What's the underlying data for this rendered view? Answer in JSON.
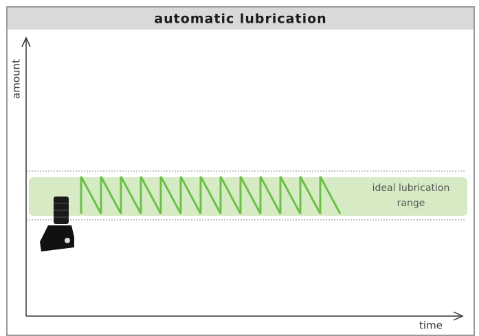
{
  "header": {
    "title": "automatic lubrication"
  },
  "axes": {
    "y_label": "amount",
    "x_label": "time"
  },
  "range_label": {
    "lines": [
      "ideal lubrication",
      "range"
    ]
  }
}
